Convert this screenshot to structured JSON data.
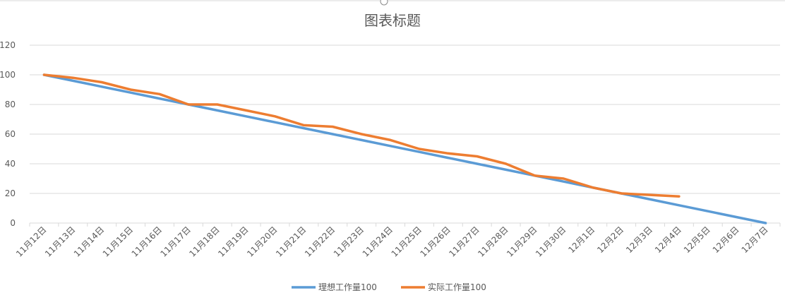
{
  "chart_data": {
    "type": "line",
    "title": "图表标题",
    "xlabel": "",
    "ylabel": "",
    "ylim": [
      0,
      120
    ],
    "yticks": [
      0,
      20,
      40,
      60,
      80,
      100,
      120
    ],
    "grid": true,
    "legend_position": "bottom",
    "categories": [
      "11月12日",
      "11月13日",
      "11月14日",
      "11月15日",
      "11月16日",
      "11月17日",
      "11月18日",
      "11月19日",
      "11月20日",
      "11月21日",
      "11月22日",
      "11月23日",
      "11月24日",
      "11月25日",
      "11月26日",
      "11月27日",
      "11月28日",
      "11月29日",
      "11月30日",
      "12月1日",
      "12月2日",
      "12月3日",
      "12月4日",
      "12月5日",
      "12月6日",
      "12月7日"
    ],
    "series": [
      {
        "name": "理想工作量100",
        "color": "#5B9BD5",
        "values": [
          100,
          96,
          92,
          88,
          84,
          80,
          76,
          72,
          68,
          64,
          60,
          56,
          52,
          48,
          44,
          40,
          36,
          32,
          28,
          24,
          20,
          16,
          12,
          8,
          4,
          0
        ]
      },
      {
        "name": "实际工作量100",
        "color": "#ED7D31",
        "values": [
          100,
          98,
          95,
          90,
          87,
          80,
          80,
          76,
          72,
          66,
          65,
          60,
          56,
          50,
          47,
          45,
          40,
          32,
          30,
          24,
          20,
          19,
          18,
          null,
          null,
          null
        ]
      }
    ]
  }
}
